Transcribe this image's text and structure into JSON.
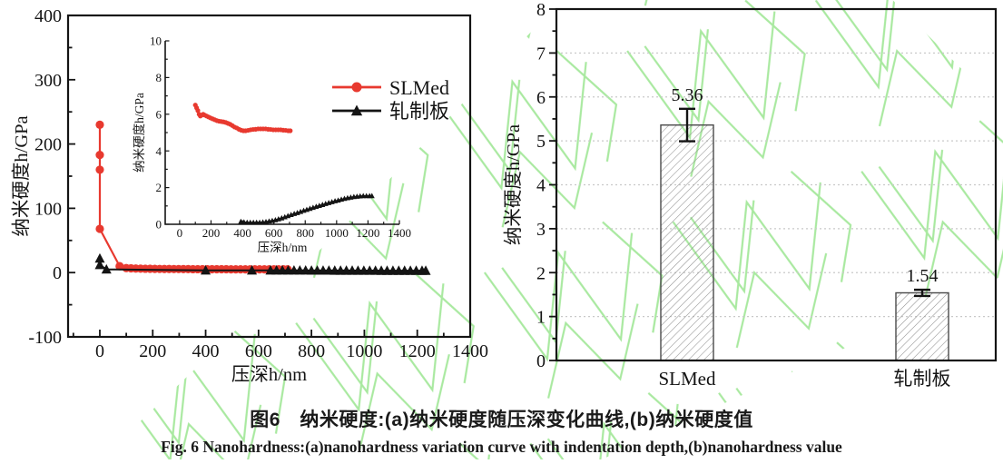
{
  "figure": {
    "caption_cn": "图6　纳米硬度:(a)纳米硬度随压深变化曲线,(b)纳米硬度值",
    "caption_en": "Fig. 6   Nanohardness:(a)nanohardness variation curve with indentation depth,(b)nanohardness value"
  },
  "colors": {
    "slmed_red": "#e8392f",
    "rolled_black": "#141414",
    "axis_black": "#141414",
    "grid_gray": "#c9c9c9",
    "bar_hatch_gray": "#909090",
    "bar_border_gray": "#4a4a4a",
    "watermark_green": "#a9e9a0"
  },
  "chart_data": [
    {
      "id": "a_main",
      "type": "scatter",
      "title": "",
      "xlabel": "压深h/nm",
      "ylabel": "纳米硬度h/GPa",
      "xlim": [
        -120,
        1400
      ],
      "ylim": [
        -100,
        400
      ],
      "xticks": [
        0,
        200,
        400,
        600,
        800,
        1000,
        1200,
        1400
      ],
      "yticks": [
        -100,
        0,
        100,
        200,
        300,
        400
      ],
      "xminor": 100,
      "yminor": 50,
      "grid": false,
      "series": [
        {
          "name": "SLMed",
          "color": "#e8392f",
          "marker": "circle",
          "points": [
            [
              0,
              230
            ],
            [
              0,
              183
            ],
            [
              0,
              160
            ],
            [
              0,
              68
            ],
            [
              75,
              10
            ],
            [
              100,
              7
            ],
            [
              118,
              6.6
            ],
            [
              136,
              6.3
            ],
            [
              154,
              6.1
            ],
            [
              172,
              6.0
            ],
            [
              190,
              5.9
            ],
            [
              208,
              5.8
            ],
            [
              226,
              5.7
            ],
            [
              244,
              5.6
            ],
            [
              262,
              5.6
            ],
            [
              280,
              5.5
            ],
            [
              298,
              5.5
            ],
            [
              316,
              5.4
            ],
            [
              334,
              5.4
            ],
            [
              352,
              5.3
            ],
            [
              370,
              5.3
            ],
            [
              388,
              5.2
            ],
            [
              406,
              5.2
            ],
            [
              424,
              5.2
            ],
            [
              442,
              5.2
            ],
            [
              460,
              5.2
            ],
            [
              478,
              5.2
            ],
            [
              496,
              5.1
            ],
            [
              514,
              5.1
            ],
            [
              532,
              5.1
            ],
            [
              550,
              5.1
            ],
            [
              568,
              5.1
            ],
            [
              586,
              5.1
            ],
            [
              604,
              5.1
            ],
            [
              622,
              5.1
            ],
            [
              640,
              5.1
            ],
            [
              658,
              5.1
            ],
            [
              676,
              5.1
            ],
            [
              694,
              5.1
            ],
            [
              710,
              5.1
            ]
          ]
        },
        {
          "name": "轧制板",
          "color": "#141414",
          "marker": "triangle",
          "points": [
            [
              0,
              22
            ],
            [
              0,
              12
            ],
            [
              25,
              5
            ],
            [
              400,
              3.5
            ],
            [
              575,
              3.5
            ],
            [
              645,
              3.5
            ],
            [
              668,
              3.5
            ],
            [
              690,
              3.5
            ],
            [
              712,
              3.4
            ],
            [
              734,
              3.4
            ],
            [
              756,
              3.4
            ],
            [
              778,
              3.4
            ],
            [
              800,
              3.3
            ],
            [
              822,
              3.3
            ],
            [
              844,
              3.3
            ],
            [
              866,
              3.3
            ],
            [
              888,
              3.2
            ],
            [
              910,
              3.2
            ],
            [
              932,
              3.2
            ],
            [
              954,
              3.2
            ],
            [
              976,
              3.1
            ],
            [
              998,
              3.1
            ],
            [
              1020,
              3.1
            ],
            [
              1042,
              3.1
            ],
            [
              1064,
              3.0
            ],
            [
              1086,
              3.0
            ],
            [
              1108,
              3.0
            ],
            [
              1130,
              3.0
            ],
            [
              1152,
              3.0
            ],
            [
              1174,
              3.0
            ],
            [
              1196,
              3.0
            ],
            [
              1218,
              3.0
            ],
            [
              1232,
              3.0
            ]
          ]
        }
      ]
    },
    {
      "id": "a_inset",
      "type": "scatter",
      "title": "",
      "xlabel": "压深h/nm",
      "ylabel": "纳米硬度h/GPa",
      "xlim": [
        -92,
        1400
      ],
      "ylim": [
        0,
        10
      ],
      "xticks": [
        0,
        200,
        400,
        600,
        800,
        1000,
        1200,
        1400
      ],
      "yticks": [
        0,
        2,
        4,
        6,
        8,
        10
      ],
      "xminor": 100,
      "yminor": 1,
      "grid": false,
      "legend": {
        "position": "upper right",
        "entries": [
          "SLMed",
          "轧制板"
        ]
      },
      "series": [
        {
          "name": "SLMed",
          "color": "#e8392f",
          "marker": "circle",
          "points": [
            [
              100,
              6.5
            ],
            [
              108,
              6.35
            ],
            [
              116,
              6.2
            ],
            [
              124,
              6.0
            ],
            [
              132,
              5.9
            ],
            [
              140,
              5.95
            ],
            [
              150,
              6.0
            ],
            [
              160,
              5.95
            ],
            [
              172,
              5.9
            ],
            [
              184,
              5.85
            ],
            [
              196,
              5.8
            ],
            [
              210,
              5.75
            ],
            [
              224,
              5.7
            ],
            [
              238,
              5.65
            ],
            [
              252,
              5.62
            ],
            [
              266,
              5.6
            ],
            [
              280,
              5.58
            ],
            [
              294,
              5.55
            ],
            [
              308,
              5.5
            ],
            [
              322,
              5.45
            ],
            [
              336,
              5.38
            ],
            [
              350,
              5.3
            ],
            [
              364,
              5.25
            ],
            [
              378,
              5.18
            ],
            [
              392,
              5.13
            ],
            [
              406,
              5.1
            ],
            [
              420,
              5.1
            ],
            [
              436,
              5.12
            ],
            [
              452,
              5.15
            ],
            [
              468,
              5.17
            ],
            [
              484,
              5.18
            ],
            [
              500,
              5.2
            ],
            [
              516,
              5.2
            ],
            [
              532,
              5.2
            ],
            [
              548,
              5.2
            ],
            [
              564,
              5.18
            ],
            [
              580,
              5.17
            ],
            [
              596,
              5.15
            ],
            [
              612,
              5.15
            ],
            [
              628,
              5.15
            ],
            [
              644,
              5.15
            ],
            [
              660,
              5.13
            ],
            [
              676,
              5.12
            ],
            [
              692,
              5.1
            ],
            [
              705,
              5.1
            ]
          ]
        },
        {
          "name": "轧制板",
          "color": "#141414",
          "marker": "triangle",
          "points": [
            [
              390,
              0.15
            ],
            [
              410,
              0.12
            ],
            [
              430,
              0.1
            ],
            [
              450,
              0.1
            ],
            [
              470,
              0.1
            ],
            [
              490,
              0.1
            ],
            [
              510,
              0.1
            ],
            [
              530,
              0.12
            ],
            [
              550,
              0.14
            ],
            [
              570,
              0.17
            ],
            [
              590,
              0.2
            ],
            [
              610,
              0.24
            ],
            [
              630,
              0.29
            ],
            [
              650,
              0.34
            ],
            [
              670,
              0.4
            ],
            [
              690,
              0.46
            ],
            [
              710,
              0.52
            ],
            [
              730,
              0.58
            ],
            [
              750,
              0.63
            ],
            [
              770,
              0.69
            ],
            [
              790,
              0.75
            ],
            [
              810,
              0.8
            ],
            [
              830,
              0.86
            ],
            [
              850,
              0.91
            ],
            [
              870,
              0.97
            ],
            [
              890,
              1.02
            ],
            [
              910,
              1.07
            ],
            [
              930,
              1.12
            ],
            [
              950,
              1.17
            ],
            [
              970,
              1.22
            ],
            [
              990,
              1.27
            ],
            [
              1010,
              1.31
            ],
            [
              1030,
              1.36
            ],
            [
              1050,
              1.4
            ],
            [
              1070,
              1.44
            ],
            [
              1090,
              1.47
            ],
            [
              1110,
              1.5
            ],
            [
              1130,
              1.52
            ],
            [
              1150,
              1.54
            ],
            [
              1170,
              1.55
            ],
            [
              1190,
              1.55
            ],
            [
              1210,
              1.55
            ],
            [
              1225,
              1.55
            ]
          ]
        }
      ]
    },
    {
      "id": "b",
      "type": "bar",
      "title": "",
      "categories": [
        "SLMed",
        "轧制板"
      ],
      "values": [
        5.36,
        1.54
      ],
      "errors": [
        0.37,
        0.07
      ],
      "value_labels": [
        "5.36",
        "1.54"
      ],
      "xlabel": "",
      "ylabel": "纳米硬度h/GPa",
      "ylim": [
        0,
        8
      ],
      "yticks": [
        0,
        1,
        2,
        3,
        4,
        5,
        6,
        7,
        8
      ],
      "yminor": 0.5,
      "grid": true
    }
  ]
}
